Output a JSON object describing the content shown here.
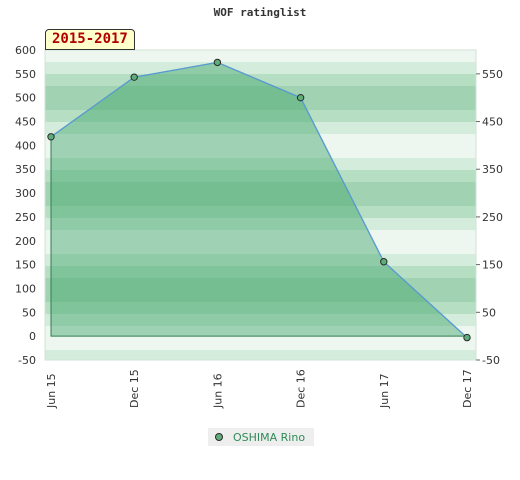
{
  "chart_data": {
    "type": "area",
    "title": "WOF ratinglist",
    "badge": "2015-2017",
    "categories": [
      "Jun 15",
      "Dec 15",
      "Jun 16",
      "Dec 16",
      "Jun 17",
      "Dec 17"
    ],
    "series": [
      {
        "name": "OSHIMA Rino",
        "values": [
          418,
          543,
          574,
          500,
          156,
          -3
        ]
      }
    ],
    "left_axis": {
      "range": [
        -50,
        600
      ],
      "ticks": [
        "600",
        "550",
        "500",
        "450",
        "400",
        "350",
        "300",
        "250",
        "200",
        "150",
        "100",
        "50",
        "0",
        "-50"
      ]
    },
    "right_axis": {
      "ticks": [
        "550",
        "450",
        "350",
        "250",
        "150",
        "50",
        "-50"
      ]
    },
    "grid": true,
    "legend_position": "bottom",
    "colors": {
      "line": "#5b9bd5",
      "fill": "#3ea46a",
      "marker": "#5fae7a"
    }
  }
}
